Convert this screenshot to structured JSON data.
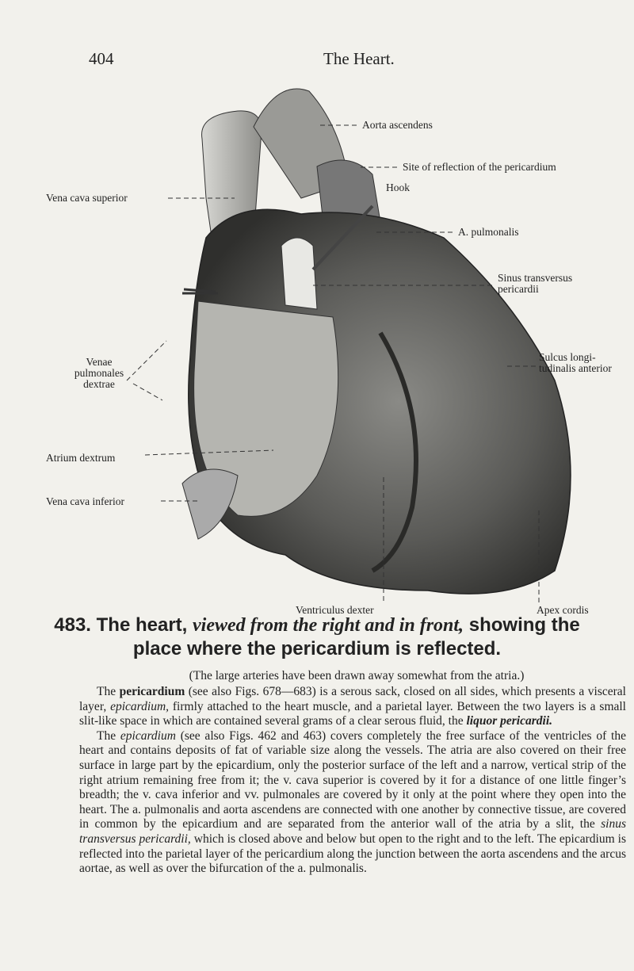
{
  "header": {
    "page_number": "404",
    "title": "The Heart."
  },
  "figure": {
    "labels": {
      "aorta": "Aorta ascendens",
      "site": "Site of reflection of the pericardium",
      "hook": "Hook",
      "pulmonalis": "A. pulmonalis",
      "sinus": [
        "Sinus transversus",
        "pericardii"
      ],
      "cava_superior": "Vena cava superior",
      "venae": [
        "Venae",
        "pulmonales",
        "dextrae"
      ],
      "sulcus": [
        "Sulcus longi-",
        "tudinalis anterior"
      ],
      "atrium": "Atrium dextrum",
      "cava_inferior": "Vena cava inferior",
      "ventriculus": "Ventriculus dexter",
      "apex": "Apex cordis"
    }
  },
  "caption": {
    "number": "483.",
    "lead": "The heart,",
    "italic": "viewed from the right and in front,",
    "rest": "showing the place where the pericardium is reflected."
  },
  "note": "(The large arteries have been drawn away somewhat from the atria.)",
  "paragraphs": [
    [
      "The ",
      "pericardium",
      " (see also Figs. 678—683) is a serous sack, closed on all sides, which presents a visceral layer, ",
      "epicardium,",
      " firmly attached to the heart muscle, and a parietal layer. Between the two layers is a small slit-like space in which are contained several grams of a clear serous fluid, the ",
      "liquor pericardii."
    ],
    [
      "The ",
      "epicardium",
      " (see also Figs. 462 and 463) covers completely the free surface of the ventricles of the heart and contains deposits of fat of variable size along the vessels. The atria are also covered on their free surface in large part by the epicardium, only the posterior surface of the left and a narrow, vertical strip of the right atrium remaining free from it; the v. cava superior is covered by it for a distance of one little finger’s breadth; the v. cava inferior and vv. pulmonales are covered by it only at the point where they open into the heart. The a. pulmonalis and aorta ascendens are connected with one another by connective tissue, are covered in common by the epicardium and are separated from the anterior wall of the atria by a slit, the ",
      "sinus transversus pericardii,",
      " which is closed above and below but open to the right and to the left. The epicardium is reflected into the parietal layer of the pericardium along the junction between the aorta ascendens and the arcus aortae, as well as over the bifurcation of the a. pulmonalis."
    ]
  ]
}
